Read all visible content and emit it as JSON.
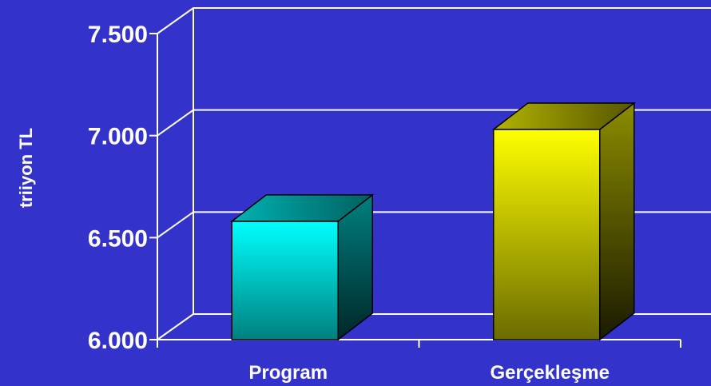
{
  "chart_data": {
    "type": "bar",
    "style": "3d",
    "title": "",
    "xlabel": "",
    "ylabel": "triiyon TL",
    "categories": [
      "Program",
      "Gerçekleşme"
    ],
    "values": [
      6580,
      7030
    ],
    "ylim": [
      6000,
      7500
    ],
    "yticks": [
      6000,
      6500,
      7000,
      7500
    ],
    "ytick_labels": [
      "6.000",
      "6.500",
      "7.000",
      "7.500"
    ],
    "grid": true,
    "legend": "none"
  },
  "colors": {
    "background": "#3333cc",
    "axis": "#ffffff",
    "gridline": "#ffffff",
    "bar_colors": [
      {
        "front_top": "#00ffff",
        "front_bottom": "#007f7f",
        "side_top": "#008080",
        "side_bottom": "#002626",
        "top_a": "#00b3b3",
        "top_b": "#005f5f"
      },
      {
        "front_top": "#ffff00",
        "front_bottom": "#6b6b00",
        "side_top": "#8c8c00",
        "side_bottom": "#1a1a00",
        "top_a": "#b3b300",
        "top_b": "#555500"
      }
    ]
  }
}
